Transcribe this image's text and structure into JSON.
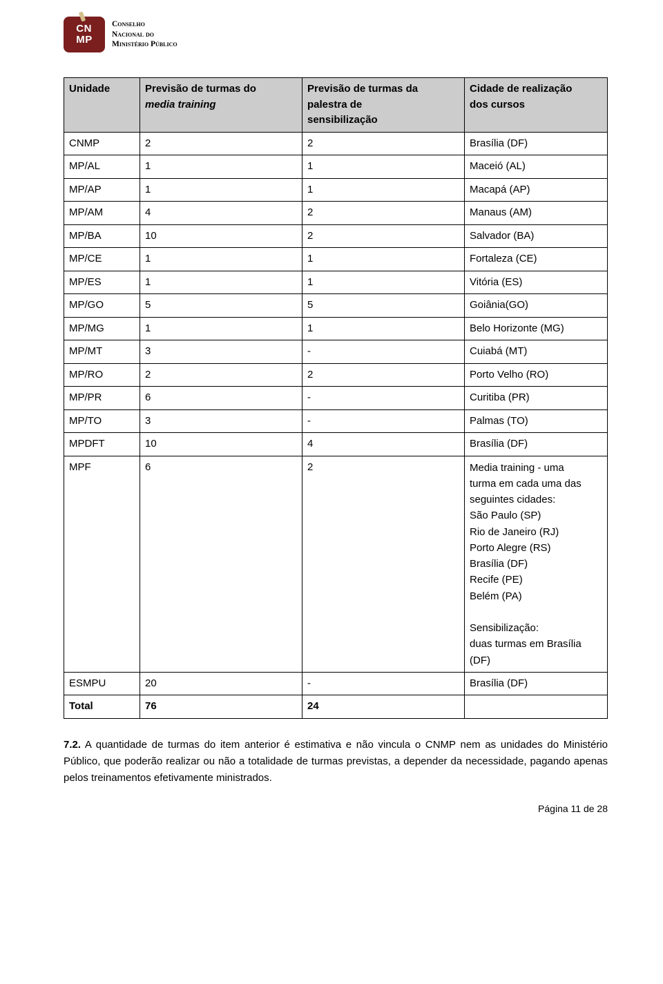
{
  "header": {
    "logo_text_1": "CN",
    "logo_text_2": "MP",
    "org_line1": "Conselho",
    "org_line2": "Nacional do",
    "org_line3": "Ministério Público"
  },
  "table": {
    "headers": {
      "col1": "Unidade",
      "col2_line1": "Previsão de turmas do",
      "col2_line2_em": "media training",
      "col3_line1": "Previsão de turmas da",
      "col3_line2": "palestra de",
      "col3_line3": "sensibilização",
      "col4_line1": "Cidade de realização",
      "col4_line2": "dos cursos"
    },
    "rows": [
      {
        "c1": "CNMP",
        "c2": "2",
        "c3": "2",
        "c4": "Brasília (DF)"
      },
      {
        "c1": "MP/AL",
        "c2": "1",
        "c3": "1",
        "c4": "Maceió (AL)"
      },
      {
        "c1": "MP/AP",
        "c2": "1",
        "c3": "1",
        "c4": "Macapá (AP)"
      },
      {
        "c1": "MP/AM",
        "c2": "4",
        "c3": "2",
        "c4": "Manaus (AM)"
      },
      {
        "c1": "MP/BA",
        "c2": "10",
        "c3": "2",
        "c4": "Salvador (BA)"
      },
      {
        "c1": "MP/CE",
        "c2": "1",
        "c3": "1",
        "c4": "Fortaleza (CE)"
      },
      {
        "c1": "MP/ES",
        "c2": "1",
        "c3": "1",
        "c4": "Vitória (ES)"
      },
      {
        "c1": "MP/GO",
        "c2": "5",
        "c3": "5",
        "c4": "Goiânia(GO)"
      },
      {
        "c1": "MP/MG",
        "c2": "1",
        "c3": "1",
        "c4": "Belo Horizonte (MG)"
      },
      {
        "c1": "MP/MT",
        "c2": "3",
        "c3": "-",
        "c4": "Cuiabá (MT)"
      },
      {
        "c1": "MP/RO",
        "c2": "2",
        "c3": "2",
        "c4": "Porto Velho (RO)"
      },
      {
        "c1": "MP/PR",
        "c2": "6",
        "c3": "-",
        "c4": "Curitiba (PR)"
      },
      {
        "c1": "MP/TO",
        "c2": "3",
        "c3": "-",
        "c4": "Palmas (TO)"
      },
      {
        "c1": "MPDFT",
        "c2": "10",
        "c3": "4",
        "c4": "Brasília (DF)"
      }
    ],
    "mpf": {
      "c1": "MPF",
      "c2": "6",
      "c3": "2",
      "lines": [
        "Media training - uma",
        "turma em cada uma das",
        "seguintes cidades:",
        "São Paulo (SP)",
        "Rio de Janeiro (RJ)",
        "Porto Alegre (RS)",
        "Brasília (DF)",
        "Recife (PE)",
        "Belém (PA)"
      ],
      "lines2": [
        "Sensibilização:",
        "duas turmas em Brasília",
        "(DF)"
      ]
    },
    "esmpu": {
      "c1": "ESMPU",
      "c2": "20",
      "c3": "-",
      "c4": "Brasília (DF)"
    },
    "total": {
      "c1": "Total",
      "c2": "76",
      "c3": "24",
      "c4": ""
    }
  },
  "paragraph": {
    "num": "7.2.",
    "text": " A quantidade de turmas do item anterior é estimativa e não vincula o CNMP nem as unidades do Ministério Público, que poderão realizar ou não a totalidade de turmas previstas, a depender da necessidade, pagando apenas pelos treinamentos efetivamente ministrados."
  },
  "footer": "Página 11 de 28"
}
